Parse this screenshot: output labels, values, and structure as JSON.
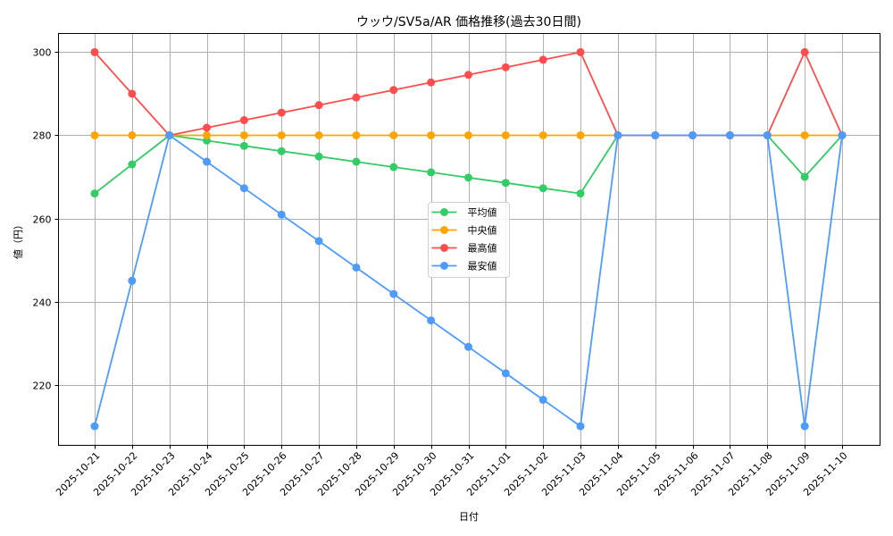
{
  "chart_data": {
    "type": "line",
    "title": "ウッウ/SV5a/AR 価格推移(過去30日間)",
    "xlabel": "日付",
    "ylabel": "値（円）",
    "ylim": [
      205.4,
      304.5
    ],
    "yticks": [
      220,
      240,
      260,
      280,
      300
    ],
    "grid": true,
    "legend_position": "center",
    "categories": [
      "2025-10-21",
      "2025-10-22",
      "2025-10-23",
      "2025-10-24",
      "2025-10-25",
      "2025-10-26",
      "2025-10-27",
      "2025-10-28",
      "2025-10-29",
      "2025-10-30",
      "2025-10-31",
      "2025-11-01",
      "2025-11-02",
      "2025-11-03",
      "2025-11-04",
      "2025-11-05",
      "2025-11-06",
      "2025-11-07",
      "2025-11-08",
      "2025-11-09",
      "2025-11-10"
    ],
    "series": [
      {
        "name": "平均値",
        "color": "#33cc66",
        "values": [
          266,
          273,
          280,
          278.73,
          277.45,
          276.18,
          274.91,
          273.64,
          272.36,
          271.09,
          269.82,
          268.55,
          267.27,
          266,
          280,
          280,
          280,
          280,
          280,
          270,
          280
        ]
      },
      {
        "name": "中央値",
        "color": "#ffa500",
        "values": [
          280,
          280,
          280,
          280,
          280,
          280,
          280,
          280,
          280,
          280,
          280,
          280,
          280,
          280,
          280,
          280,
          280,
          280,
          280,
          280,
          280
        ]
      },
      {
        "name": "最高値",
        "color": "#ff4d4d",
        "values": [
          300,
          290,
          280,
          281.82,
          283.64,
          285.45,
          287.27,
          289.09,
          290.91,
          292.73,
          294.55,
          296.36,
          298.18,
          300,
          280,
          280,
          280,
          280,
          280,
          300,
          280
        ]
      },
      {
        "name": "最安値",
        "color": "#4d9bff",
        "values": [
          210,
          245,
          280,
          273.64,
          267.27,
          260.91,
          254.55,
          248.18,
          241.82,
          235.45,
          229.09,
          222.73,
          216.36,
          210,
          280,
          280,
          280,
          280,
          280,
          210,
          280
        ]
      }
    ]
  }
}
